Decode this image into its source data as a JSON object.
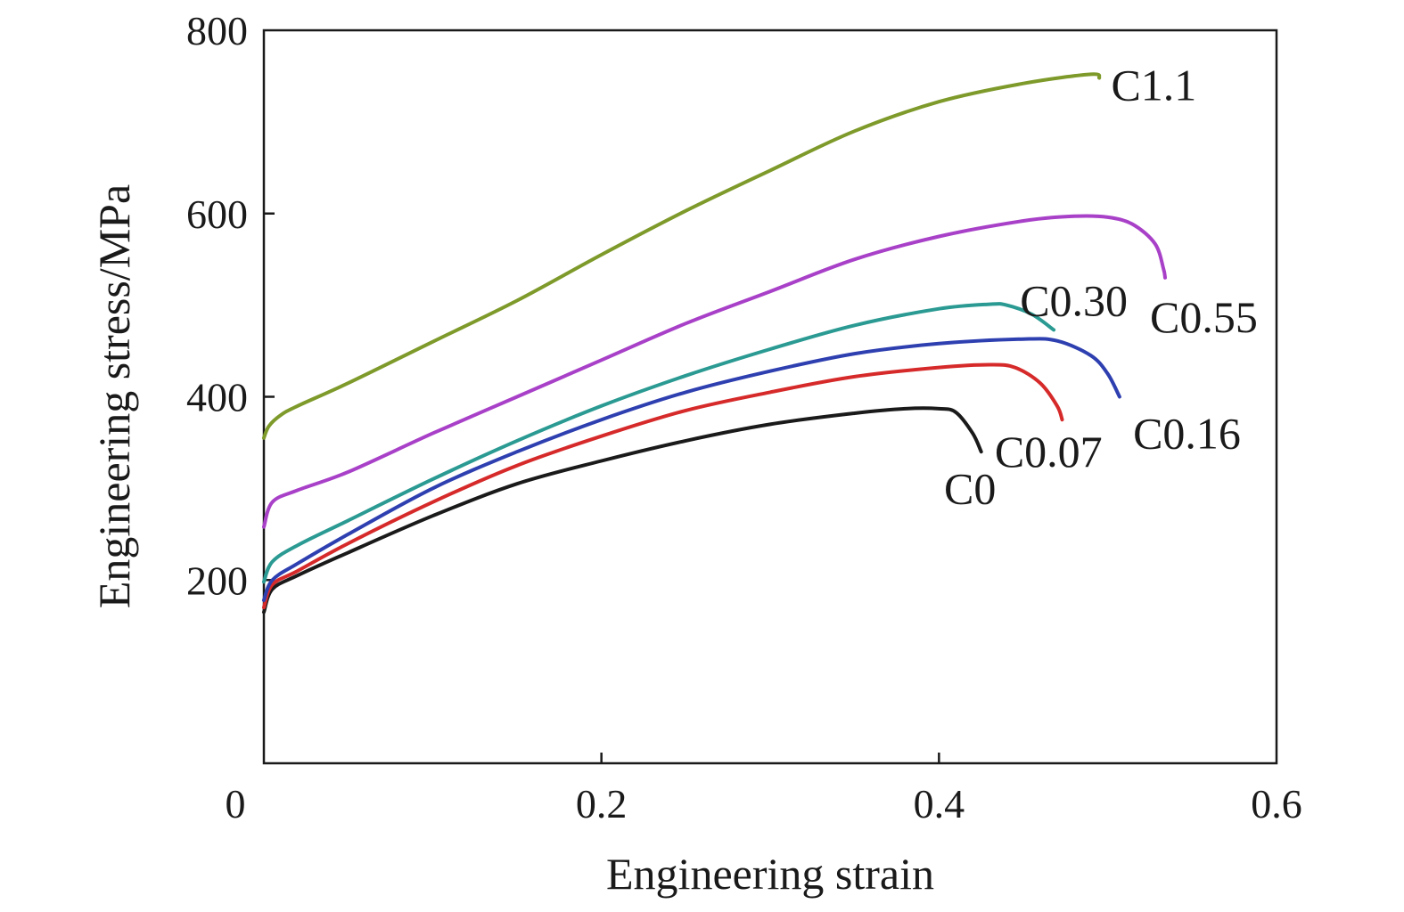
{
  "chart_data": {
    "type": "line",
    "title": "",
    "xlabel": "Engineering strain",
    "ylabel": "Engineering stress/MPa",
    "xlim": [
      0,
      0.6
    ],
    "ylim": [
      0,
      800
    ],
    "x_ticks": [
      "0",
      "0.2",
      "0.4",
      "0.6"
    ],
    "y_ticks": [
      "200",
      "400",
      "600",
      "800"
    ],
    "x_tick_values": [
      0,
      0.2,
      0.4,
      0.6
    ],
    "y_tick_values": [
      200,
      400,
      600,
      800
    ],
    "grid": false,
    "legend": "labels at curve ends",
    "series": [
      {
        "name": "C0",
        "color": "#1a1a1a",
        "points": [
          [
            0,
            165
          ],
          [
            0.005,
            190
          ],
          [
            0.02,
            205
          ],
          [
            0.05,
            230
          ],
          [
            0.1,
            270
          ],
          [
            0.15,
            305
          ],
          [
            0.2,
            330
          ],
          [
            0.25,
            352
          ],
          [
            0.3,
            370
          ],
          [
            0.35,
            382
          ],
          [
            0.38,
            387
          ],
          [
            0.4,
            387
          ],
          [
            0.41,
            383
          ],
          [
            0.42,
            360
          ],
          [
            0.425,
            340
          ]
        ]
      },
      {
        "name": "C0.07",
        "color": "#d62a2a",
        "points": [
          [
            0,
            170
          ],
          [
            0.005,
            195
          ],
          [
            0.02,
            210
          ],
          [
            0.05,
            240
          ],
          [
            0.1,
            285
          ],
          [
            0.15,
            325
          ],
          [
            0.2,
            357
          ],
          [
            0.25,
            385
          ],
          [
            0.3,
            405
          ],
          [
            0.35,
            422
          ],
          [
            0.4,
            432
          ],
          [
            0.43,
            435
          ],
          [
            0.445,
            432
          ],
          [
            0.46,
            415
          ],
          [
            0.47,
            390
          ],
          [
            0.473,
            375
          ]
        ]
      },
      {
        "name": "C0.16",
        "color": "#2e3fb0",
        "points": [
          [
            0,
            178
          ],
          [
            0.005,
            200
          ],
          [
            0.02,
            218
          ],
          [
            0.05,
            250
          ],
          [
            0.1,
            300
          ],
          [
            0.15,
            340
          ],
          [
            0.2,
            375
          ],
          [
            0.25,
            405
          ],
          [
            0.3,
            428
          ],
          [
            0.35,
            447
          ],
          [
            0.4,
            458
          ],
          [
            0.45,
            463
          ],
          [
            0.47,
            461
          ],
          [
            0.49,
            445
          ],
          [
            0.5,
            425
          ],
          [
            0.507,
            400
          ]
        ]
      },
      {
        "name": "C0.30",
        "color": "#2a9a92",
        "points": [
          [
            0,
            198
          ],
          [
            0.005,
            220
          ],
          [
            0.02,
            238
          ],
          [
            0.05,
            265
          ],
          [
            0.1,
            310
          ],
          [
            0.15,
            352
          ],
          [
            0.2,
            390
          ],
          [
            0.25,
            423
          ],
          [
            0.3,
            452
          ],
          [
            0.35,
            478
          ],
          [
            0.4,
            496
          ],
          [
            0.43,
            501
          ],
          [
            0.44,
            500
          ],
          [
            0.455,
            490
          ],
          [
            0.468,
            473
          ]
        ]
      },
      {
        "name": "C0.55",
        "color": "#a840c8",
        "points": [
          [
            0,
            258
          ],
          [
            0.005,
            285
          ],
          [
            0.02,
            298
          ],
          [
            0.05,
            318
          ],
          [
            0.1,
            360
          ],
          [
            0.15,
            400
          ],
          [
            0.2,
            440
          ],
          [
            0.25,
            480
          ],
          [
            0.3,
            515
          ],
          [
            0.35,
            550
          ],
          [
            0.4,
            575
          ],
          [
            0.45,
            592
          ],
          [
            0.48,
            597
          ],
          [
            0.5,
            596
          ],
          [
            0.515,
            588
          ],
          [
            0.528,
            567
          ],
          [
            0.533,
            540
          ],
          [
            0.534,
            530
          ]
        ]
      },
      {
        "name": "C1.1",
        "color": "#7e9a2a",
        "points": [
          [
            0,
            355
          ],
          [
            0.003,
            368
          ],
          [
            0.01,
            380
          ],
          [
            0.02,
            390
          ],
          [
            0.05,
            415
          ],
          [
            0.1,
            460
          ],
          [
            0.15,
            505
          ],
          [
            0.2,
            555
          ],
          [
            0.25,
            603
          ],
          [
            0.3,
            647
          ],
          [
            0.35,
            690
          ],
          [
            0.4,
            722
          ],
          [
            0.45,
            742
          ],
          [
            0.49,
            752
          ],
          [
            0.495,
            748
          ]
        ]
      }
    ],
    "series_label_positions": [
      {
        "name": "C0",
        "x": 0.403,
        "y": 300
      },
      {
        "name": "C0.07",
        "x": 0.433,
        "y": 340
      },
      {
        "name": "C0.16",
        "x": 0.515,
        "y": 360
      },
      {
        "name": "C0.30",
        "x": 0.448,
        "y": 505
      },
      {
        "name": "C0.55",
        "x": 0.525,
        "y": 487
      },
      {
        "name": "C1.1",
        "x": 0.502,
        "y": 740
      }
    ]
  }
}
